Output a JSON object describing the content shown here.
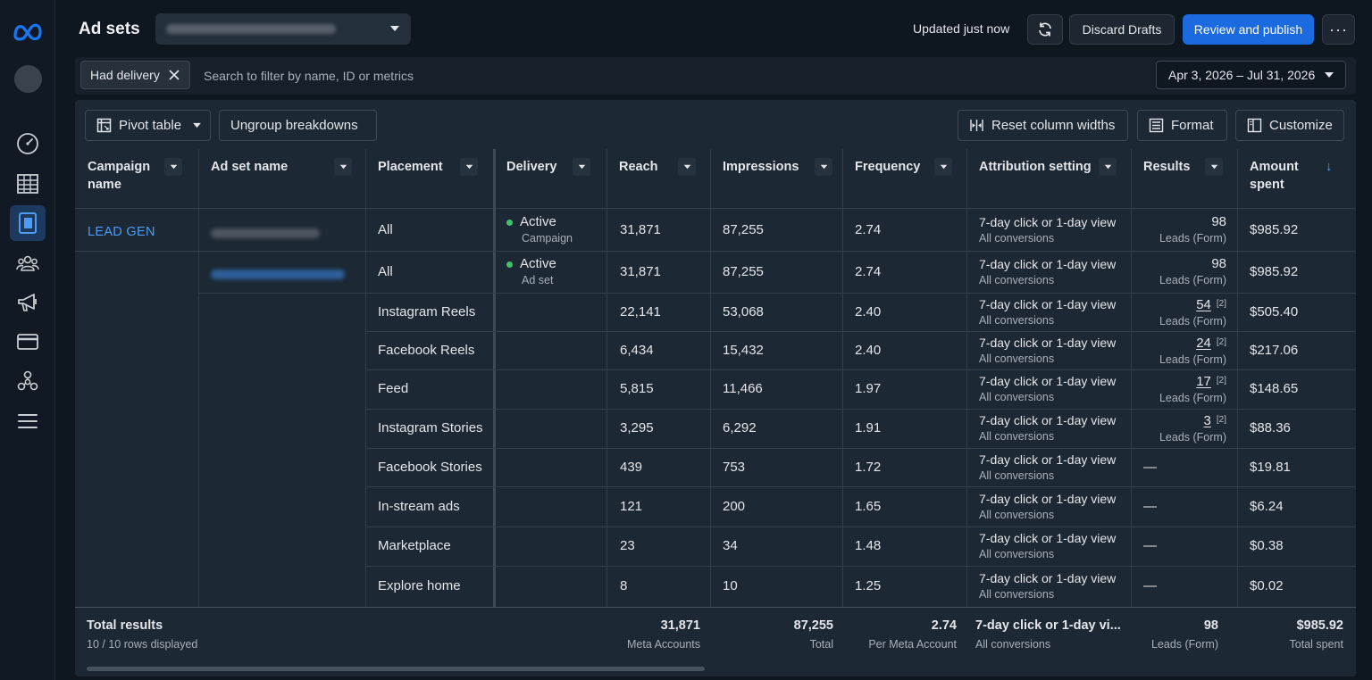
{
  "header": {
    "title": "Ad sets",
    "updated_text": "Updated just now",
    "discard_label": "Discard Drafts",
    "publish_label": "Review and publish",
    "more_label": "···"
  },
  "filter": {
    "chip_label": "Had delivery",
    "search_placeholder": "Search to filter by name, ID or metrics",
    "date_range": "Apr 3, 2026 – Jul 31, 2026"
  },
  "toolbar": {
    "pivot_label": "Pivot table",
    "ungroup_label": "Ungroup breakdowns",
    "reset_label": "Reset column widths",
    "format_label": "Format",
    "customize_label": "Customize"
  },
  "columns": {
    "campaign": "Campaign name",
    "adset": "Ad set name",
    "placement": "Placement",
    "delivery": "Delivery",
    "reach": "Reach",
    "impressions": "Impressions",
    "frequency": "Frequency",
    "attribution": "Attribution setting",
    "results": "Results",
    "amount": "Amount spent"
  },
  "campaign_name": "LEAD GEN",
  "rows": [
    {
      "placement": "All",
      "delivery": "Active",
      "delivery_sub": "Campaign",
      "reach": "31,871",
      "impressions": "87,255",
      "frequency": "2.74",
      "attr": "7-day click or 1-day view",
      "attr_sub": "All conversions",
      "result": "98",
      "result_sup": "",
      "result_sub": "Leads (Form)",
      "amount": "$985.92"
    },
    {
      "placement": "All",
      "delivery": "Active",
      "delivery_sub": "Ad set",
      "reach": "31,871",
      "impressions": "87,255",
      "frequency": "2.74",
      "attr": "7-day click or 1-day view",
      "attr_sub": "All conversions",
      "result": "98",
      "result_sup": "",
      "result_sub": "Leads (Form)",
      "amount": "$985.92"
    },
    {
      "placement": "Instagram Reels",
      "delivery": "",
      "delivery_sub": "",
      "reach": "22,141",
      "impressions": "53,068",
      "frequency": "2.40",
      "attr": "7-day click or 1-day view",
      "attr_sub": "All conversions",
      "result": "54",
      "result_sup": "[2]",
      "result_sub": "Leads (Form)",
      "amount": "$505.40"
    },
    {
      "placement": "Facebook Reels",
      "delivery": "",
      "delivery_sub": "",
      "reach": "6,434",
      "impressions": "15,432",
      "frequency": "2.40",
      "attr": "7-day click or 1-day view",
      "attr_sub": "All conversions",
      "result": "24",
      "result_sup": "[2]",
      "result_sub": "Leads (Form)",
      "amount": "$217.06"
    },
    {
      "placement": "Feed",
      "delivery": "",
      "delivery_sub": "",
      "reach": "5,815",
      "impressions": "11,466",
      "frequency": "1.97",
      "attr": "7-day click or 1-day view",
      "attr_sub": "All conversions",
      "result": "17",
      "result_sup": "[2]",
      "result_sub": "Leads (Form)",
      "amount": "$148.65"
    },
    {
      "placement": "Instagram Stories",
      "delivery": "",
      "delivery_sub": "",
      "reach": "3,295",
      "impressions": "6,292",
      "frequency": "1.91",
      "attr": "7-day click or 1-day view",
      "attr_sub": "All conversions",
      "result": "3",
      "result_sup": "[2]",
      "result_sub": "Leads (Form)",
      "amount": "$88.36"
    },
    {
      "placement": "Facebook Stories",
      "delivery": "",
      "delivery_sub": "",
      "reach": "439",
      "impressions": "753",
      "frequency": "1.72",
      "attr": "7-day click or 1-day view",
      "attr_sub": "All conversions",
      "result": "—",
      "result_sup": "",
      "result_sub": "",
      "amount": "$19.81"
    },
    {
      "placement": "In-stream ads",
      "delivery": "",
      "delivery_sub": "",
      "reach": "121",
      "impressions": "200",
      "frequency": "1.65",
      "attr": "7-day click or 1-day view",
      "attr_sub": "All conversions",
      "result": "—",
      "result_sup": "",
      "result_sub": "",
      "amount": "$6.24"
    },
    {
      "placement": "Marketplace",
      "delivery": "",
      "delivery_sub": "",
      "reach": "23",
      "impressions": "34",
      "frequency": "1.48",
      "attr": "7-day click or 1-day view",
      "attr_sub": "All conversions",
      "result": "—",
      "result_sup": "",
      "result_sub": "",
      "amount": "$0.38"
    },
    {
      "placement": "Explore home",
      "delivery": "",
      "delivery_sub": "",
      "reach": "8",
      "impressions": "10",
      "frequency": "1.25",
      "attr": "7-day click or 1-day view",
      "attr_sub": "All conversions",
      "result": "—",
      "result_sup": "",
      "result_sub": "",
      "amount": "$0.02"
    }
  ],
  "totals": {
    "title": "Total results",
    "rows_displayed": "10 / 10 rows displayed",
    "reach": "31,871",
    "reach_label": "Meta Accounts",
    "impressions": "87,255",
    "impressions_label": "Total",
    "frequency": "2.74",
    "frequency_label": "Per Meta Account",
    "attr": "7-day click or 1-day vi...",
    "attr_label": "All conversions",
    "results": "98",
    "results_label": "Leads (Form)",
    "amount": "$985.92",
    "amount_label": "Total spent"
  },
  "colors": {
    "accent": "#1b6ae0",
    "link": "#4d9cf8",
    "active_dot": "#3ec26a",
    "panel_bg": "#1c2833",
    "page_bg": "#0e1620"
  },
  "icons": [
    "meta-logo",
    "gauge-icon",
    "table-icon",
    "reports-icon",
    "audience-icon",
    "megaphone-icon",
    "billing-icon",
    "business-icon",
    "menu-icon",
    "refresh-icon",
    "close-icon",
    "caret-down-icon",
    "pivot-icon",
    "reset-columns-icon",
    "format-icon",
    "customize-icon",
    "sort-down-icon"
  ]
}
